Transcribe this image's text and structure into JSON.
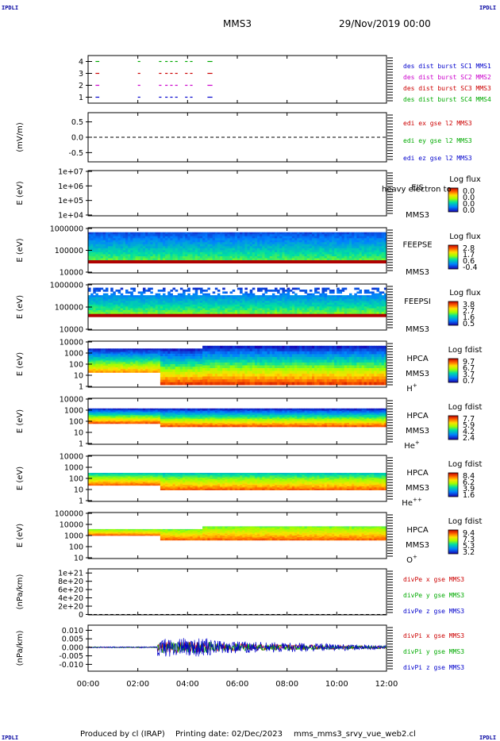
{
  "corner_tag": "IPDLI",
  "header": {
    "mission": "MMS3",
    "date": "29/Nov/2019 00:00"
  },
  "footer": {
    "produced_by": "Produced by cl (IRAP)",
    "printing_date": "Printing date: 02/Dec/2023",
    "script": "mms_mms3_srvy_vue_web2.cl"
  },
  "x_axis": {
    "ticks": [
      "00:00",
      "02:00",
      "04:00",
      "06:00",
      "08:00",
      "10:00",
      "12:00"
    ],
    "range_hours": [
      0,
      12
    ]
  },
  "chart_data": [
    {
      "type": "scatter",
      "title": "",
      "ylabel": "",
      "yticks": [
        "1",
        "2",
        "3",
        "4"
      ],
      "ylim": [
        0.5,
        4.5
      ],
      "series": [
        {
          "name": "des dist burst SC1 MMS1",
          "color": "#0000cc",
          "y": 1
        },
        {
          "name": "des dist burst SC2 MMS2",
          "color": "#cc00cc",
          "y": 2
        },
        {
          "name": "des dist burst SC3 MMS3",
          "color": "#cc0000",
          "y": 3
        },
        {
          "name": "des dist burst SC4 MMS4",
          "color": "#00aa00",
          "y": 4
        }
      ],
      "burst_intervals_hours": [
        [
          0.3,
          0.45
        ],
        [
          2.0,
          2.1
        ],
        [
          2.85,
          2.95
        ],
        [
          3.1,
          3.2
        ],
        [
          3.3,
          3.4
        ],
        [
          3.5,
          3.6
        ],
        [
          3.9,
          4.0
        ],
        [
          4.1,
          4.2
        ],
        [
          4.8,
          5.0
        ]
      ]
    },
    {
      "type": "line",
      "title": "",
      "ylabel": "(mV/m)",
      "yticks": [
        "0.5",
        "0.0",
        "-0.5"
      ],
      "ylim": [
        -0.8,
        0.8
      ],
      "series": [
        {
          "name": "edi ex gse l2 MMS3",
          "color": "#cc0000"
        },
        {
          "name": "edi ey gse l2 MMS3",
          "color": "#00aa00"
        },
        {
          "name": "edi ez gse l2 MMS3",
          "color": "#0000cc"
        }
      ]
    },
    {
      "type": "heatmap",
      "ylabel": "E (eV)",
      "yticks": [
        "1e+07",
        "1e+06",
        "1e+05",
        "1e+04"
      ],
      "labels": [
        "EIS",
        "MMS3"
      ],
      "overlay_text": "heavy electron to",
      "colorbar": {
        "title": "Log flux",
        "ticks": [
          "0.0",
          "0.0",
          "0.0",
          "0.0"
        ]
      }
    },
    {
      "type": "heatmap",
      "ylabel": "E (eV)",
      "yticks": [
        "1000000",
        "100000",
        "10000"
      ],
      "labels": [
        "FEEPSE",
        "MMS3"
      ],
      "colorbar": {
        "title": "Log flux",
        "ticks": [
          "2.8",
          "1.7",
          "0.6",
          "-0.4"
        ]
      }
    },
    {
      "type": "heatmap",
      "ylabel": "E (eV)",
      "yticks": [
        "1000000",
        "100000",
        "10000"
      ],
      "labels": [
        "FEEPSI",
        "MMS3"
      ],
      "colorbar": {
        "title": "Log flux",
        "ticks": [
          "3.8",
          "2.7",
          "1.6",
          "0.5"
        ]
      }
    },
    {
      "type": "heatmap",
      "ylabel": "E (eV)",
      "yticks": [
        "10000",
        "1000",
        "100",
        "10",
        "1"
      ],
      "labels": [
        "HPCA",
        "MMS3"
      ],
      "species": "H",
      "charge": "+",
      "colorbar": {
        "title": "Log fdist",
        "ticks": [
          "9.7",
          "6.7",
          "3.7",
          "0.7"
        ]
      }
    },
    {
      "type": "heatmap",
      "ylabel": "E (eV)",
      "yticks": [
        "10000",
        "1000",
        "100",
        "10",
        "1"
      ],
      "labels": [
        "HPCA",
        "MMS3"
      ],
      "species": "He",
      "charge": "+",
      "colorbar": {
        "title": "Log fdist",
        "ticks": [
          "7.7",
          "5.9",
          "4.2",
          "2.4"
        ]
      }
    },
    {
      "type": "heatmap",
      "ylabel": "E (eV)",
      "yticks": [
        "10000",
        "1000",
        "100",
        "10",
        "1"
      ],
      "labels": [
        "HPCA",
        "MMS3"
      ],
      "species": "He",
      "charge": "++",
      "colorbar": {
        "title": "Log fdist",
        "ticks": [
          "8.4",
          "6.2",
          "3.9",
          "1.6"
        ]
      }
    },
    {
      "type": "heatmap",
      "ylabel": "E (eV)",
      "yticks": [
        "100000",
        "10000",
        "1000",
        "100",
        "10"
      ],
      "labels": [
        "HPCA",
        "MMS3"
      ],
      "species": "O",
      "charge": "+",
      "colorbar": {
        "title": "Log fdist",
        "ticks": [
          "9.4",
          "7.3",
          "5.3",
          "3.2"
        ]
      }
    },
    {
      "type": "line",
      "ylabel": "(nPa/km)",
      "yticks": [
        "1e+21",
        "8e+20",
        "6e+20",
        "4e+20",
        "2e+20",
        "0"
      ],
      "ylim": [
        -1e+19,
        1.1e+21
      ],
      "series": [
        {
          "name": "divPe x gse MMS3",
          "color": "#cc0000"
        },
        {
          "name": "divPe y gse MMS3",
          "color": "#00aa00"
        },
        {
          "name": "divPe z gse MMS3",
          "color": "#0000cc"
        }
      ]
    },
    {
      "type": "line",
      "ylabel": "(nPa/km)",
      "yticks": [
        "0.010",
        "0.005",
        "0.000",
        "-0.005",
        "-0.010"
      ],
      "ylim": [
        -0.014,
        0.013
      ],
      "series": [
        {
          "name": "divPi x gse MMS3",
          "color": "#cc0000"
        },
        {
          "name": "divPi y gse MMS3",
          "color": "#00aa00"
        },
        {
          "name": "divPi z gse MMS3",
          "color": "#0000cc"
        }
      ]
    }
  ]
}
